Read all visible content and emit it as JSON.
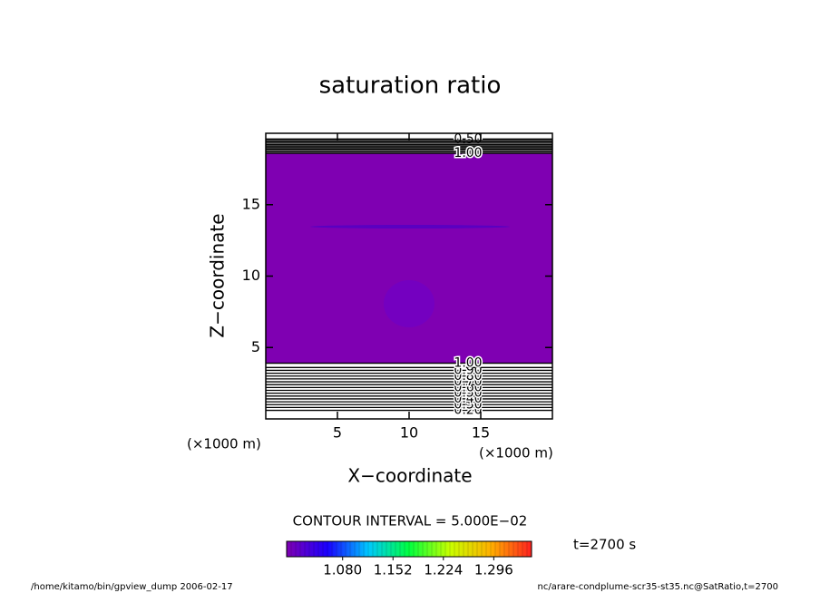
{
  "chart_data": {
    "type": "contour",
    "title": "saturation ratio",
    "x_label": "X−coordinate",
    "y_label": "Z−coordinate",
    "x_unit": "(×1000 m)",
    "y_unit": "(×1000 m)",
    "xlim": [
      0,
      20
    ],
    "ylim": [
      0,
      20
    ],
    "xticks": [
      5,
      10,
      15
    ],
    "yticks": [
      5,
      10,
      15
    ],
    "fill": {
      "z": [
        3.9,
        18.6
      ],
      "color": "#7f00b2"
    },
    "contours": {
      "levels": [
        0.2,
        0.25,
        0.3,
        0.35,
        0.4,
        0.45,
        0.5,
        0.55,
        0.6,
        0.65,
        0.7,
        0.75,
        0.8,
        0.85,
        0.9,
        0.95,
        1.0,
        0.5,
        0.55,
        0.6,
        0.65,
        0.7,
        0.75,
        0.8,
        0.85,
        0.9,
        0.95,
        1.0
      ],
      "z": [
        0.6,
        0.8,
        1.0,
        1.2,
        1.4,
        1.6,
        1.8,
        2.0,
        2.2,
        2.4,
        2.6,
        2.8,
        3.0,
        3.2,
        3.4,
        3.6,
        3.9,
        19.6,
        19.5,
        19.4,
        19.3,
        19.2,
        19.1,
        19.0,
        18.9,
        18.8,
        18.7,
        18.6
      ],
      "value_labels": [
        "0.20",
        null,
        "0.30",
        null,
        "0.40",
        null,
        "0.50",
        null,
        "0.60",
        null,
        "0.70",
        null,
        "0.80",
        null,
        "0.90",
        null,
        "1.00",
        "0.50",
        null,
        null,
        null,
        null,
        null,
        null,
        null,
        null,
        null,
        "1.00"
      ]
    },
    "contour_interval": "CONTOUR INTERVAL = 5.000E−02",
    "time": "t=2700 s",
    "colorbar": {
      "lim": [
        1.0,
        1.35
      ],
      "ticks": [
        {
          "value": 1.08,
          "label": "1.080"
        },
        {
          "value": 1.152,
          "label": "1.152"
        },
        {
          "value": 1.224,
          "label": "1.224"
        },
        {
          "value": 1.296,
          "label": "1.296"
        }
      ],
      "colors": [
        "#7f00b2",
        "#1a00ff",
        "#00c8ff",
        "#00ff40",
        "#c8ff00",
        "#ffb000",
        "#ff2020"
      ]
    },
    "footer_left": "/home/kitamo/bin/gpview_dump  2006-02-17",
    "footer_right": "nc/arare-condplume-scr35-st35.nc@SatRatio,t=2700"
  }
}
